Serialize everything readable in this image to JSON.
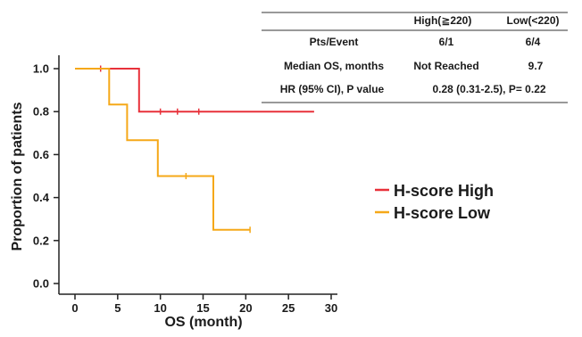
{
  "summary_table": {
    "columns": [
      "High(≧220)",
      "Low(<220)"
    ],
    "rows": [
      {
        "label": "Pts/Event",
        "high": "6/1",
        "low": "6/4"
      },
      {
        "label": "Median OS, months",
        "high": "Not Reached",
        "low": "9.7"
      },
      {
        "label": "HR (95% CI), P value",
        "combined": "0.28 (0.31-2.5), P= 0.22"
      }
    ]
  },
  "chart_data": {
    "type": "line",
    "subtype": "kaplan-meier-step",
    "xlabel": "OS (month)",
    "ylabel": "Proportion of patients",
    "xlim": [
      0,
      30
    ],
    "ylim": [
      0,
      1.0
    ],
    "xticks": [
      "0",
      "5",
      "10",
      "15",
      "20",
      "25",
      "30"
    ],
    "yticks": [
      "0.0",
      "0.2",
      "0.4",
      "0.6",
      "0.8",
      "1.0"
    ],
    "grid": false,
    "legend_position": "right",
    "series": [
      {
        "name": "H-score High",
        "color": "#e8313a",
        "steps": [
          [
            0,
            1.0
          ],
          [
            7.5,
            1.0
          ],
          [
            7.5,
            0.8
          ],
          [
            28,
            0.8
          ]
        ],
        "censored": [
          [
            3,
            1.0
          ],
          [
            10,
            0.8
          ],
          [
            12,
            0.8
          ],
          [
            14.5,
            0.8
          ]
        ]
      },
      {
        "name": "H-score Low",
        "color": "#f5a818",
        "steps": [
          [
            0,
            1.0
          ],
          [
            4,
            1.0
          ],
          [
            4,
            0.833
          ],
          [
            6.1,
            0.833
          ],
          [
            6.1,
            0.667
          ],
          [
            9.7,
            0.667
          ],
          [
            9.7,
            0.5
          ],
          [
            16.2,
            0.5
          ],
          [
            16.2,
            0.25
          ],
          [
            20.5,
            0.25
          ]
        ],
        "censored": [
          [
            13,
            0.5
          ],
          [
            20.5,
            0.25
          ]
        ]
      }
    ]
  }
}
